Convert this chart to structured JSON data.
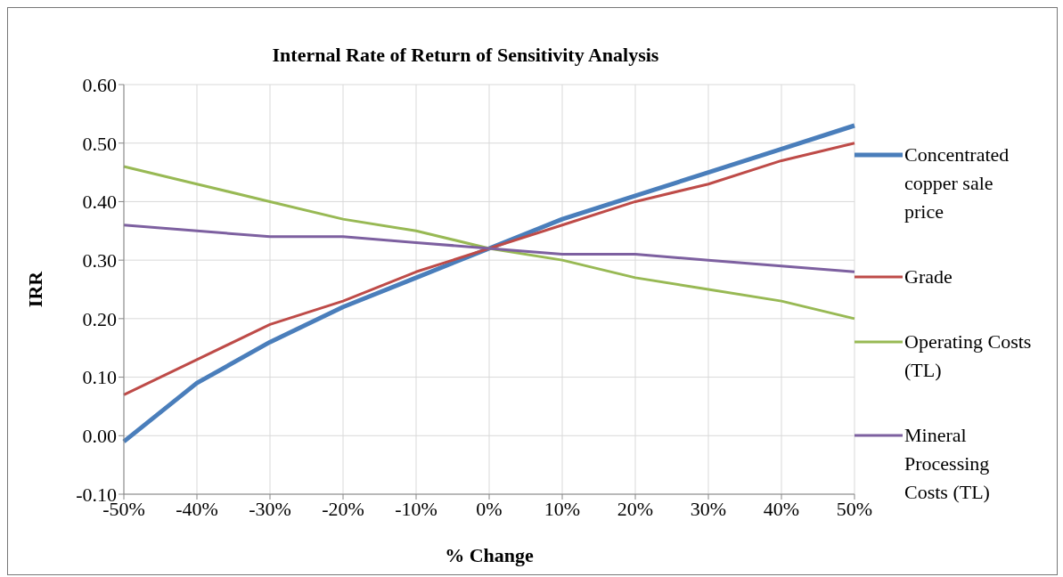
{
  "chart_data": {
    "type": "line",
    "title": "Internal Rate of Return of Sensitivity Analysis",
    "xlabel": "% Change",
    "ylabel": "IRR",
    "categories": [
      "-50%",
      "-40%",
      "-30%",
      "-20%",
      "-10%",
      "0%",
      "10%",
      "20%",
      "30%",
      "40%",
      "50%"
    ],
    "series": [
      {
        "name": "Concentrated copper sale price",
        "color": "#4a7ebb",
        "values": [
          -0.01,
          0.09,
          0.16,
          0.22,
          0.27,
          0.32,
          0.37,
          0.41,
          0.45,
          0.49,
          0.53
        ]
      },
      {
        "name": "Grade",
        "color": "#be4b48",
        "values": [
          0.07,
          0.13,
          0.19,
          0.23,
          0.28,
          0.32,
          0.36,
          0.4,
          0.43,
          0.47,
          0.5
        ]
      },
      {
        "name": "Operating Costs (TL)",
        "color": "#98b954",
        "values": [
          0.46,
          0.43,
          0.4,
          0.37,
          0.35,
          0.32,
          0.3,
          0.27,
          0.25,
          0.23,
          0.2
        ]
      },
      {
        "name": "Mineral Processing Costs (TL)",
        "color": "#7d60a0",
        "values": [
          0.36,
          0.35,
          0.34,
          0.34,
          0.33,
          0.32,
          0.31,
          0.31,
          0.3,
          0.29,
          0.28
        ]
      }
    ],
    "ylim": [
      -0.1,
      0.6
    ],
    "yticks": [
      {
        "value": -0.1,
        "label": "-0.10"
      },
      {
        "value": 0,
        "label": "0.00"
      },
      {
        "value": 0.1,
        "label": "0.10"
      },
      {
        "value": 0.2,
        "label": "0.20"
      },
      {
        "value": 0.3,
        "label": "0.30"
      },
      {
        "value": 0.4,
        "label": "0.40"
      },
      {
        "value": 0.5,
        "label": "0.50"
      },
      {
        "value": 0.6,
        "label": "0.60"
      }
    ],
    "grid": true,
    "legend": "right",
    "marker": "none",
    "line_style": "solid"
  }
}
